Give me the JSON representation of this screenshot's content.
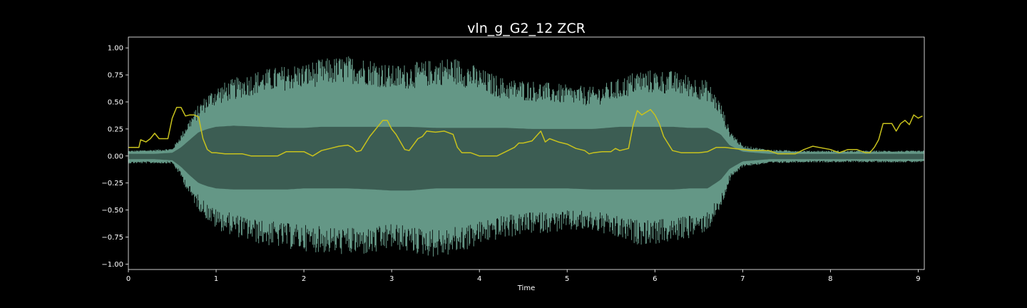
{
  "chart_data": {
    "type": "line",
    "title": "vln_g_G2_12 ZCR",
    "xlabel": "Time",
    "ylabel": "",
    "xlim": [
      0,
      9.07
    ],
    "ylim": [
      -1.05,
      1.1
    ],
    "grid": false,
    "x_ticks": [
      0,
      1,
      2,
      3,
      4,
      5,
      6,
      7,
      8,
      9
    ],
    "y_ticks": [
      1.0,
      0.75,
      0.5,
      0.25,
      0.0,
      -0.25,
      -0.5,
      -0.75,
      -1.0
    ],
    "y_tick_labels": [
      "1.00",
      "0.75",
      "0.50",
      "0.25",
      "0.00",
      "−0.25",
      "−0.50",
      "−0.75",
      "−1.00"
    ],
    "series": [
      {
        "kind": "waveform_envelope",
        "color": "#6fa795",
        "inner_color": "#3a5a50",
        "t": [
          0,
          0.3,
          0.5,
          0.6,
          0.7,
          0.8,
          0.9,
          1.0,
          1.2,
          1.5,
          1.8,
          2.0,
          2.2,
          2.5,
          2.8,
          3.0,
          3.2,
          3.5,
          3.7,
          3.9,
          4.1,
          4.3,
          4.6,
          5.0,
          5.3,
          5.6,
          5.8,
          6.0,
          6.2,
          6.4,
          6.6,
          6.75,
          6.85,
          7.0,
          7.3,
          7.7,
          8.0,
          8.5,
          9.0,
          9.07
        ],
        "upper": [
          0.05,
          0.06,
          0.07,
          0.2,
          0.35,
          0.48,
          0.58,
          0.65,
          0.72,
          0.8,
          0.84,
          0.86,
          0.9,
          0.93,
          0.9,
          0.84,
          0.86,
          0.9,
          0.92,
          0.86,
          0.78,
          0.72,
          0.7,
          0.66,
          0.64,
          0.72,
          0.8,
          0.8,
          0.79,
          0.75,
          0.7,
          0.5,
          0.25,
          0.1,
          0.06,
          0.05,
          0.05,
          0.05,
          0.05,
          0.05
        ],
        "lower": [
          -0.07,
          -0.07,
          -0.07,
          -0.2,
          -0.38,
          -0.5,
          -0.6,
          -0.68,
          -0.74,
          -0.82,
          -0.86,
          -0.88,
          -0.9,
          -0.92,
          -0.92,
          -0.86,
          -0.9,
          -0.94,
          -0.92,
          -0.86,
          -0.8,
          -0.76,
          -0.72,
          -0.7,
          -0.7,
          -0.78,
          -0.82,
          -0.82,
          -0.8,
          -0.76,
          -0.7,
          -0.5,
          -0.24,
          -0.1,
          -0.07,
          -0.06,
          -0.06,
          -0.06,
          -0.06,
          -0.06
        ],
        "inner_upper": [
          0.02,
          0.02,
          0.03,
          0.08,
          0.15,
          0.22,
          0.25,
          0.27,
          0.28,
          0.27,
          0.26,
          0.26,
          0.27,
          0.27,
          0.27,
          0.27,
          0.27,
          0.26,
          0.26,
          0.26,
          0.26,
          0.26,
          0.25,
          0.25,
          0.25,
          0.27,
          0.27,
          0.27,
          0.27,
          0.26,
          0.26,
          0.2,
          0.1,
          0.04,
          0.02,
          0.02,
          0.02,
          0.02,
          0.02,
          0.02
        ],
        "inner_lower": [
          -0.03,
          -0.03,
          -0.04,
          -0.1,
          -0.18,
          -0.25,
          -0.28,
          -0.3,
          -0.31,
          -0.31,
          -0.31,
          -0.3,
          -0.3,
          -0.3,
          -0.31,
          -0.32,
          -0.32,
          -0.3,
          -0.3,
          -0.3,
          -0.3,
          -0.3,
          -0.3,
          -0.3,
          -0.31,
          -0.31,
          -0.31,
          -0.31,
          -0.31,
          -0.3,
          -0.3,
          -0.22,
          -0.12,
          -0.05,
          -0.03,
          -0.03,
          -0.03,
          -0.03,
          -0.03,
          -0.03
        ]
      },
      {
        "kind": "zcr_line",
        "color": "#c8c21d",
        "x": [
          0.0,
          0.12,
          0.14,
          0.2,
          0.25,
          0.3,
          0.35,
          0.4,
          0.45,
          0.5,
          0.55,
          0.6,
          0.65,
          0.7,
          0.75,
          0.8,
          0.85,
          0.9,
          0.95,
          1.0,
          1.1,
          1.3,
          1.4,
          1.5,
          1.7,
          1.8,
          2.0,
          2.1,
          2.2,
          2.3,
          2.4,
          2.5,
          2.55,
          2.6,
          2.65,
          2.75,
          2.85,
          2.9,
          2.95,
          3.0,
          3.05,
          3.15,
          3.2,
          3.3,
          3.35,
          3.4,
          3.5,
          3.6,
          3.7,
          3.75,
          3.8,
          3.85,
          3.9,
          4.0,
          4.2,
          4.4,
          4.45,
          4.5,
          4.6,
          4.7,
          4.75,
          4.8,
          4.9,
          5.0,
          5.1,
          5.2,
          5.25,
          5.3,
          5.4,
          5.5,
          5.55,
          5.6,
          5.7,
          5.75,
          5.8,
          5.85,
          5.95,
          6.0,
          6.05,
          6.1,
          6.2,
          6.3,
          6.5,
          6.6,
          6.7,
          6.8,
          7.0,
          7.1,
          7.3,
          7.4,
          7.6,
          7.7,
          7.8,
          8.0,
          8.1,
          8.2,
          8.3,
          8.4,
          8.45,
          8.5,
          8.55,
          8.6,
          8.7,
          8.75,
          8.8,
          8.85,
          8.9,
          8.95,
          9.0,
          9.05
        ],
        "y": [
          0.08,
          0.08,
          0.15,
          0.13,
          0.16,
          0.21,
          0.16,
          0.16,
          0.16,
          0.35,
          0.45,
          0.45,
          0.37,
          0.38,
          0.38,
          0.36,
          0.16,
          0.06,
          0.03,
          0.03,
          0.02,
          0.02,
          0.0,
          0.0,
          0.0,
          0.04,
          0.04,
          0.0,
          0.05,
          0.07,
          0.09,
          0.1,
          0.08,
          0.04,
          0.05,
          0.18,
          0.28,
          0.33,
          0.33,
          0.25,
          0.2,
          0.06,
          0.05,
          0.16,
          0.18,
          0.23,
          0.22,
          0.23,
          0.2,
          0.08,
          0.03,
          0.03,
          0.03,
          0.0,
          0.0,
          0.08,
          0.12,
          0.12,
          0.14,
          0.23,
          0.13,
          0.16,
          0.13,
          0.11,
          0.07,
          0.05,
          0.02,
          0.03,
          0.04,
          0.04,
          0.07,
          0.05,
          0.07,
          0.28,
          0.42,
          0.38,
          0.43,
          0.38,
          0.3,
          0.18,
          0.05,
          0.03,
          0.03,
          0.04,
          0.08,
          0.08,
          0.06,
          0.05,
          0.05,
          0.02,
          0.02,
          0.06,
          0.09,
          0.06,
          0.03,
          0.06,
          0.06,
          0.03,
          0.03,
          0.08,
          0.15,
          0.3,
          0.3,
          0.23,
          0.3,
          0.33,
          0.29,
          0.38,
          0.35,
          0.37
        ]
      }
    ]
  },
  "colors": {
    "background": "#000000",
    "axes": "#ffffff",
    "waveform": "#6fa795",
    "waveform_core": "#3a5a50",
    "zcr": "#c8c21d"
  }
}
